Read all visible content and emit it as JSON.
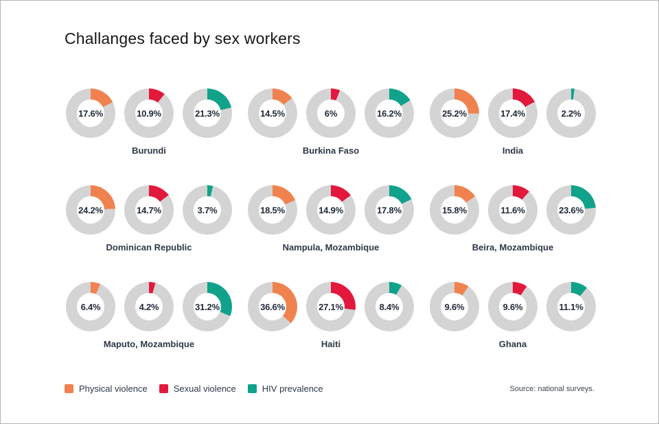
{
  "window": {
    "background": "#ffffff",
    "border_color": "#b4b4b4"
  },
  "header": {
    "title": "Challanges faced by sex workers"
  },
  "chart_data": {
    "type": "pie",
    "variant": "donut small multiples (3 metrics per location, slice starts at 12 o'clock clockwise)",
    "title": "Challanges faced by sex workers",
    "unit": "%",
    "columns_per_row": 3,
    "ring_background": "#D4D4D5",
    "value_range": [
      0,
      100
    ],
    "metrics": [
      {
        "name": "Physical violence",
        "color": "#F0824F"
      },
      {
        "name": "Sexual violence",
        "color": "#E2193C"
      },
      {
        "name": "HIV prevalence",
        "color": "#11A28C"
      }
    ],
    "groups": [
      {
        "label": "Burundi",
        "values": [
          17.6,
          10.9,
          21.3
        ],
        "display": [
          "17.6%",
          "10.9%",
          "21.3%"
        ]
      },
      {
        "label": "Burkina Faso",
        "values": [
          14.5,
          6.0,
          16.2
        ],
        "display": [
          "14.5%",
          "6%",
          "16.2%"
        ]
      },
      {
        "label": "India",
        "values": [
          25.2,
          17.4,
          2.2
        ],
        "display": [
          "25.2%",
          "17.4%",
          "2.2%"
        ]
      },
      {
        "label": "Dominican Republic",
        "values": [
          24.2,
          14.7,
          3.7
        ],
        "display": [
          "24.2%",
          "14.7%",
          "3.7%"
        ]
      },
      {
        "label": "Nampula, Mozambique",
        "values": [
          18.5,
          14.9,
          17.8
        ],
        "display": [
          "18.5%",
          "14.9%",
          "17.8%"
        ]
      },
      {
        "label": "Beira, Mozambique",
        "values": [
          15.8,
          11.6,
          23.6
        ],
        "display": [
          "15.8%",
          "11.6%",
          "23.6%"
        ]
      },
      {
        "label": "Maputo, Mozambique",
        "values": [
          6.4,
          4.2,
          31.2
        ],
        "display": [
          "6.4%",
          "4.2%",
          "31.2%"
        ]
      },
      {
        "label": "Haiti",
        "values": [
          36.6,
          27.1,
          8.4
        ],
        "display": [
          "36.6%",
          "27.1%",
          "8.4%"
        ]
      },
      {
        "label": "Ghana",
        "values": [
          9.6,
          9.6,
          11.1
        ],
        "display": [
          "9.6%",
          "9.6%",
          "11.1%"
        ]
      }
    ],
    "legend_position": "bottom-left",
    "source": "Source: national surveys."
  },
  "legend": {
    "items": [
      {
        "label": "Physical violence",
        "color": "#F0824F"
      },
      {
        "label": "Sexual violence",
        "color": "#E2193C"
      },
      {
        "label": "HIV prevalence",
        "color": "#11A28C"
      }
    ]
  },
  "footer": {
    "source": "Source: national surveys."
  }
}
